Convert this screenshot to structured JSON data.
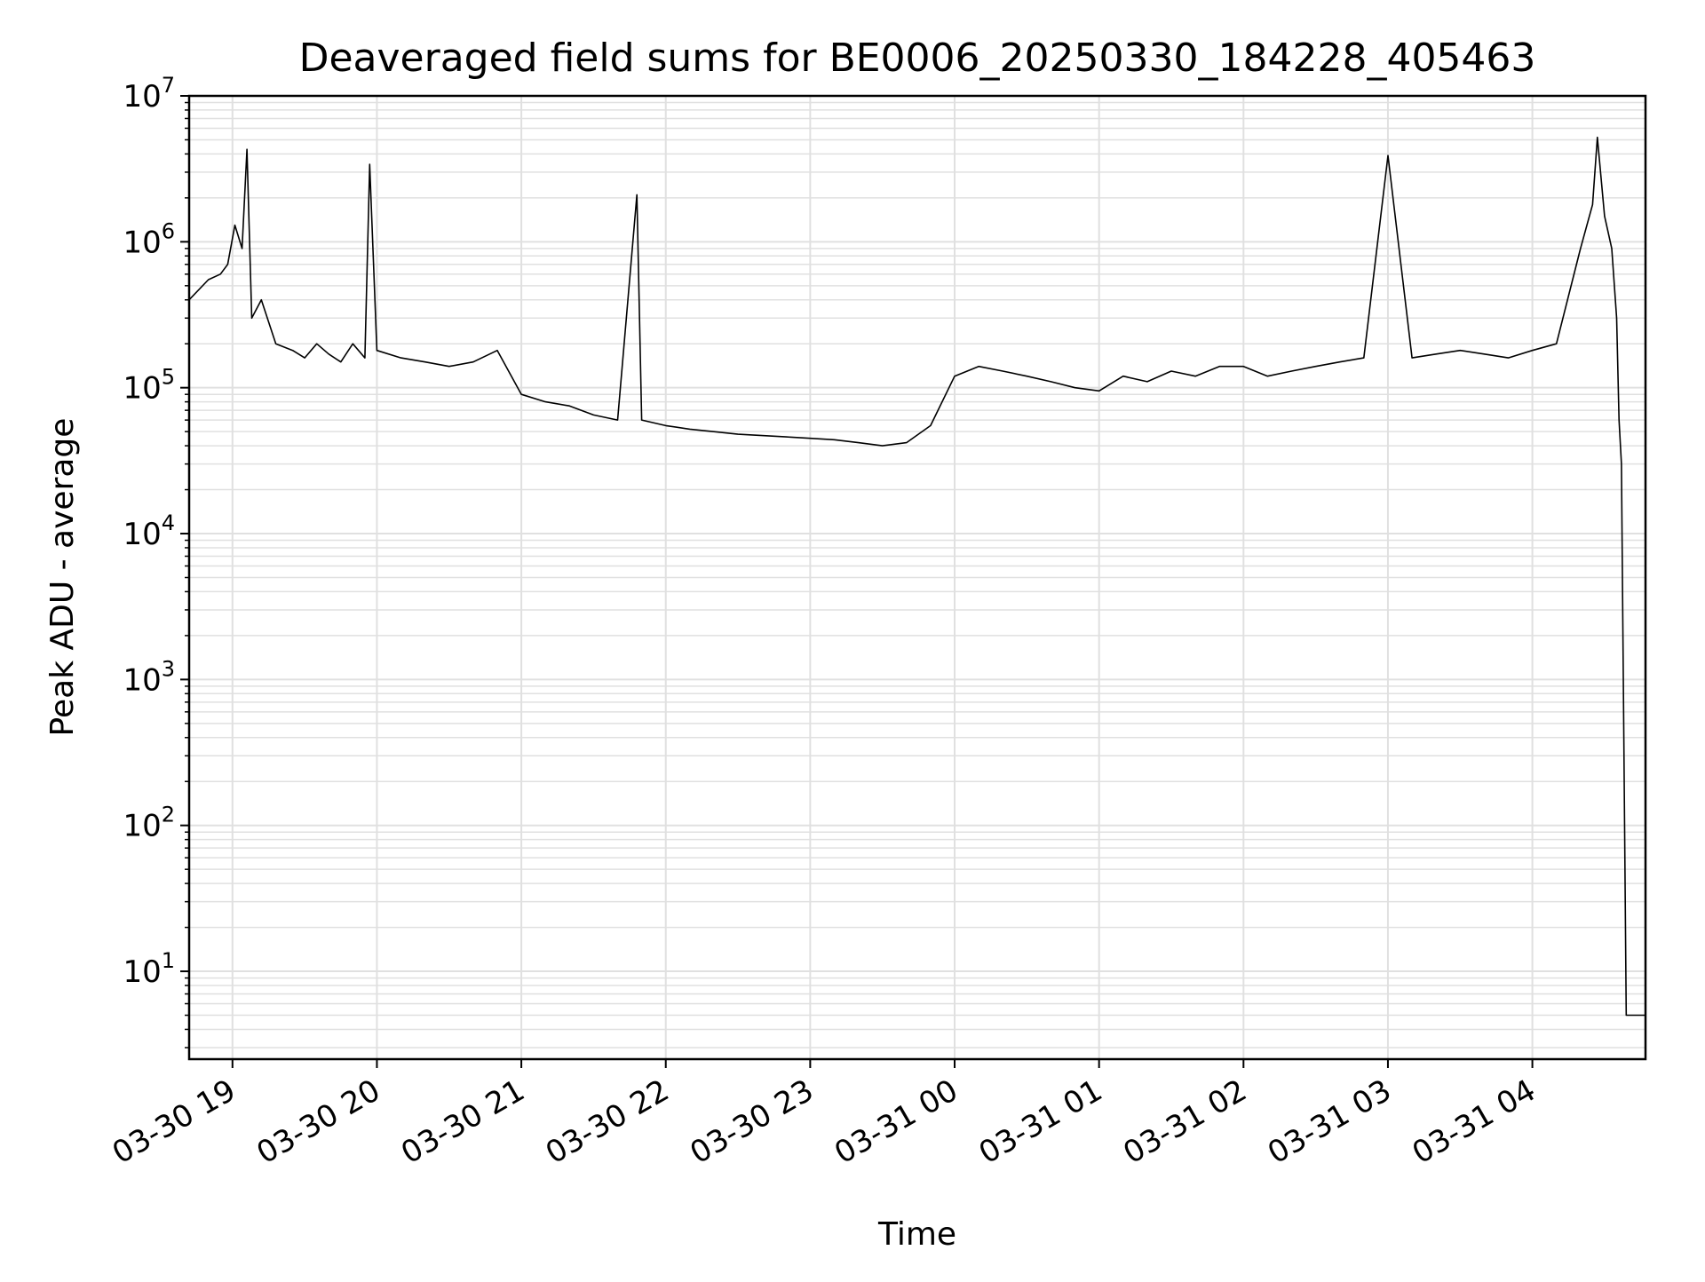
{
  "chart_data": {
    "type": "line",
    "title": "Deaveraged field sums for BE0006_20250330_184228_405463",
    "xlabel": "Time",
    "ylabel": "Peak ADU - average",
    "yscale": "log",
    "ylim": [
      2.5,
      10000000
    ],
    "xlim": [
      "2025-03-30 18:42",
      "2025-03-31 04:47"
    ],
    "grid": "on (major and minor)",
    "line_color": "#000000",
    "grid_color": "#e0e0e0",
    "x_ticks": [
      {
        "value": "2025-03-30 19:00",
        "label": "03-30 19"
      },
      {
        "value": "2025-03-30 20:00",
        "label": "03-30 20"
      },
      {
        "value": "2025-03-30 21:00",
        "label": "03-30 21"
      },
      {
        "value": "2025-03-30 22:00",
        "label": "03-30 22"
      },
      {
        "value": "2025-03-30 23:00",
        "label": "03-30 23"
      },
      {
        "value": "2025-03-31 00:00",
        "label": "03-31 00"
      },
      {
        "value": "2025-03-31 01:00",
        "label": "03-31 01"
      },
      {
        "value": "2025-03-31 02:00",
        "label": "03-31 02"
      },
      {
        "value": "2025-03-31 03:00",
        "label": "03-31 03"
      },
      {
        "value": "2025-03-31 04:00",
        "label": "03-31 04"
      }
    ],
    "y_ticks": [
      {
        "value": 10,
        "base": "10",
        "exp": "1"
      },
      {
        "value": 100,
        "base": "10",
        "exp": "2"
      },
      {
        "value": 1000,
        "base": "10",
        "exp": "3"
      },
      {
        "value": 10000,
        "base": "10",
        "exp": "4"
      },
      {
        "value": 100000,
        "base": "10",
        "exp": "5"
      },
      {
        "value": 1000000,
        "base": "10",
        "exp": "6"
      },
      {
        "value": 10000000,
        "base": "10",
        "exp": "7"
      }
    ],
    "series": [
      {
        "x": [
          "2025-03-30 18:42",
          "2025-03-30 18:50",
          "2025-03-30 18:55",
          "2025-03-30 18:58",
          "2025-03-30 19:01",
          "2025-03-30 19:04",
          "2025-03-30 19:06",
          "2025-03-30 19:08",
          "2025-03-30 19:12",
          "2025-03-30 19:18",
          "2025-03-30 19:25",
          "2025-03-30 19:30",
          "2025-03-30 19:35",
          "2025-03-30 19:40",
          "2025-03-30 19:45",
          "2025-03-30 19:50",
          "2025-03-30 19:55",
          "2025-03-30 19:57",
          "2025-03-30 20:00",
          "2025-03-30 20:10",
          "2025-03-30 20:20",
          "2025-03-30 20:30",
          "2025-03-30 20:40",
          "2025-03-30 20:50",
          "2025-03-30 21:00",
          "2025-03-30 21:10",
          "2025-03-30 21:20",
          "2025-03-30 21:30",
          "2025-03-30 21:40",
          "2025-03-30 21:48",
          "2025-03-30 21:50",
          "2025-03-30 22:00",
          "2025-03-30 22:10",
          "2025-03-30 22:20",
          "2025-03-30 22:30",
          "2025-03-30 22:40",
          "2025-03-30 22:50",
          "2025-03-30 23:00",
          "2025-03-30 23:10",
          "2025-03-30 23:20",
          "2025-03-30 23:30",
          "2025-03-30 23:40",
          "2025-03-30 23:50",
          "2025-03-31 00:00",
          "2025-03-31 00:10",
          "2025-03-31 00:20",
          "2025-03-31 00:30",
          "2025-03-31 00:40",
          "2025-03-31 00:50",
          "2025-03-31 01:00",
          "2025-03-31 01:10",
          "2025-03-31 01:20",
          "2025-03-31 01:30",
          "2025-03-31 01:40",
          "2025-03-31 01:50",
          "2025-03-31 02:00",
          "2025-03-31 02:10",
          "2025-03-31 02:20",
          "2025-03-31 02:30",
          "2025-03-31 02:40",
          "2025-03-31 02:50",
          "2025-03-31 03:00",
          "2025-03-31 03:10",
          "2025-03-31 03:20",
          "2025-03-31 03:30",
          "2025-03-31 03:40",
          "2025-03-31 03:50",
          "2025-03-31 04:00",
          "2025-03-31 04:10",
          "2025-03-31 04:20",
          "2025-03-31 04:25",
          "2025-03-31 04:27",
          "2025-03-31 04:30",
          "2025-03-31 04:33",
          "2025-03-31 04:35",
          "2025-03-31 04:36",
          "2025-03-31 04:37",
          "2025-03-31 04:38",
          "2025-03-31 04:39",
          "2025-03-31 04:40",
          "2025-03-31 04:41",
          "2025-03-31 04:42",
          "2025-03-31 04:47"
        ],
        "y": [
          400000,
          550000,
          600000,
          700000,
          1300000,
          900000,
          4300000,
          300000,
          400000,
          200000,
          180000,
          160000,
          200000,
          170000,
          150000,
          200000,
          160000,
          3400000,
          180000,
          160000,
          150000,
          140000,
          150000,
          180000,
          90000,
          80000,
          75000,
          65000,
          60000,
          2100000,
          60000,
          55000,
          52000,
          50000,
          48000,
          47000,
          46000,
          45000,
          44000,
          42000,
          40000,
          42000,
          55000,
          120000,
          140000,
          130000,
          120000,
          110000,
          100000,
          95000,
          120000,
          110000,
          130000,
          120000,
          140000,
          140000,
          120000,
          130000,
          140000,
          150000,
          160000,
          3900000,
          160000,
          170000,
          180000,
          170000,
          160000,
          180000,
          200000,
          900000,
          1800000,
          5200000,
          1500000,
          900000,
          300000,
          60000,
          30000,
          400,
          5,
          5,
          5,
          5,
          5
        ]
      }
    ]
  }
}
